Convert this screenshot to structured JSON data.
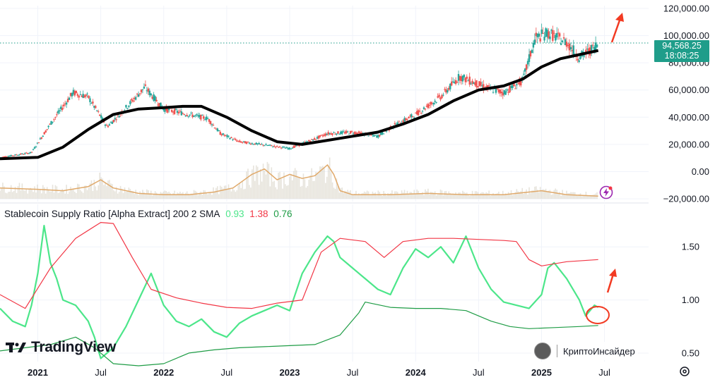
{
  "chart_data": [
    {
      "type": "line",
      "title": "",
      "xlabel": "",
      "ylabel": "",
      "xlim": [
        2020.7,
        2025.85
      ],
      "ylim": [
        -22000,
        122000
      ],
      "y_ticks": [
        "120,000.00",
        "100,000.00",
        "80,000.00",
        "60,000.00",
        "40,000.00",
        "20,000.00",
        "0.00",
        "−20,000.00"
      ],
      "y_tick_values": [
        120000,
        100000,
        80000,
        60000,
        40000,
        20000,
        0,
        -20000
      ],
      "current_price": "94,568.25",
      "countdown": "18:08:25",
      "current_price_value": 94568,
      "series": [
        {
          "color": "#000000",
          "kind": "moving-average",
          "x": [
            2020.7,
            2021.0,
            2021.2,
            2021.4,
            2021.6,
            2021.8,
            2022.0,
            2022.15,
            2022.3,
            2022.5,
            2022.7,
            2022.9,
            2023.1,
            2023.3,
            2023.5,
            2023.7,
            2023.9,
            2024.1,
            2024.3,
            2024.5,
            2024.7,
            2024.85,
            2025.0,
            2025.15,
            2025.3,
            2025.45
          ],
          "y": [
            9500,
            10500,
            18000,
            31000,
            42000,
            46000,
            47000,
            48000,
            48000,
            40000,
            30000,
            22000,
            20000,
            23000,
            26000,
            29000,
            35000,
            42000,
            52000,
            60000,
            63000,
            68000,
            77000,
            83000,
            86000,
            89000
          ]
        },
        {
          "color": "#e0a96a",
          "kind": "oscillator",
          "x": [
            2020.7,
            2021.0,
            2021.2,
            2021.4,
            2021.5,
            2021.6,
            2021.8,
            2022.0,
            2022.2,
            2022.4,
            2022.55,
            2022.7,
            2022.8,
            2022.9,
            2023.0,
            2023.1,
            2023.2,
            2023.3,
            2023.35,
            2023.4,
            2023.5,
            2023.8,
            2024.1,
            2024.4,
            2024.7,
            2025.0,
            2025.2,
            2025.45
          ],
          "y": [
            -12000,
            -13000,
            -14000,
            -11000,
            -6000,
            -12000,
            -16000,
            -17000,
            -17000,
            -15000,
            -12000,
            -2000,
            2000,
            -6000,
            -2000,
            -5000,
            -3000,
            5000,
            -2000,
            -14000,
            -17000,
            -17000,
            -16000,
            -17000,
            -17000,
            -14000,
            -17000,
            -18000
          ]
        }
      ]
    },
    {
      "type": "line",
      "title": "Stablecoin Supply Ratio [Alpha Extract] 200 2 SMA",
      "legend_values": [
        "0.93",
        "1.38",
        "0.76"
      ],
      "xlabel": "",
      "ylabel": "",
      "xlim": [
        2020.7,
        2025.85
      ],
      "ylim": [
        0.42,
        1.8
      ],
      "y_ticks": [
        "1.50",
        "1.00",
        "0.50"
      ],
      "y_tick_values": [
        1.5,
        1.0,
        0.5
      ],
      "x_ticks": [
        "2021",
        "Jul",
        "2022",
        "Jul",
        "2023",
        "Jul",
        "2024",
        "Jul",
        "2025",
        "Jul"
      ],
      "x_tick_values": [
        2021.0,
        2021.5,
        2022.0,
        2022.5,
        2023.0,
        2023.5,
        2024.0,
        2024.5,
        2025.0,
        2025.5
      ],
      "series": [
        {
          "color": "#4ce68a",
          "value": 0.93,
          "kind": "ratio",
          "x": [
            2020.7,
            2020.8,
            2020.9,
            2020.95,
            2021.0,
            2021.05,
            2021.1,
            2021.15,
            2021.2,
            2021.3,
            2021.4,
            2021.45,
            2021.5,
            2021.6,
            2021.7,
            2021.8,
            2021.9,
            2022.0,
            2022.1,
            2022.2,
            2022.3,
            2022.4,
            2022.5,
            2022.6,
            2022.7,
            2022.8,
            2022.9,
            2023.0,
            2023.1,
            2023.2,
            2023.3,
            2023.35,
            2023.4,
            2023.5,
            2023.6,
            2023.7,
            2023.8,
            2023.9,
            2024.0,
            2024.1,
            2024.2,
            2024.3,
            2024.4,
            2024.5,
            2024.6,
            2024.7,
            2024.8,
            2024.9,
            2025.0,
            2025.05,
            2025.1,
            2025.2,
            2025.3,
            2025.35,
            2025.42,
            2025.45
          ],
          "y": [
            0.92,
            0.8,
            0.75,
            0.95,
            1.25,
            1.7,
            1.35,
            1.2,
            1.0,
            0.95,
            0.8,
            0.65,
            0.45,
            0.55,
            0.75,
            1.0,
            1.25,
            0.95,
            0.8,
            0.75,
            0.82,
            0.7,
            0.65,
            0.78,
            0.85,
            0.9,
            0.95,
            0.9,
            1.25,
            1.45,
            1.6,
            1.55,
            1.4,
            1.3,
            1.2,
            1.1,
            1.05,
            1.3,
            1.48,
            1.4,
            1.5,
            1.35,
            1.6,
            1.3,
            1.1,
            0.98,
            0.95,
            0.92,
            1.05,
            1.3,
            1.35,
            1.2,
            1.0,
            0.85,
            0.95,
            0.93
          ]
        },
        {
          "color": "#f23645",
          "value": 1.38,
          "kind": "upper-band",
          "x": [
            2020.7,
            2020.9,
            2021.1,
            2021.3,
            2021.5,
            2021.6,
            2021.75,
            2021.9,
            2022.1,
            2022.3,
            2022.5,
            2022.7,
            2022.9,
            2023.1,
            2023.25,
            2023.4,
            2023.6,
            2023.75,
            2023.9,
            2024.1,
            2024.3,
            2024.5,
            2024.7,
            2024.8,
            2024.9,
            2025.0,
            2025.2,
            2025.45
          ],
          "y": [
            1.05,
            0.92,
            1.3,
            1.58,
            1.73,
            1.72,
            1.4,
            1.1,
            1.02,
            0.97,
            0.93,
            0.92,
            0.97,
            1.0,
            1.45,
            1.58,
            1.55,
            1.4,
            1.55,
            1.58,
            1.58,
            1.57,
            1.56,
            1.55,
            1.38,
            1.32,
            1.36,
            1.38
          ]
        },
        {
          "color": "#1e9c45",
          "value": 0.76,
          "kind": "lower-band",
          "x": [
            2020.7,
            2020.9,
            2021.1,
            2021.3,
            2021.45,
            2021.6,
            2021.8,
            2022.0,
            2022.2,
            2022.4,
            2022.6,
            2022.8,
            2023.0,
            2023.2,
            2023.4,
            2023.55,
            2023.6,
            2023.8,
            2024.0,
            2024.2,
            2024.4,
            2024.6,
            2024.75,
            2024.9,
            2025.1,
            2025.3,
            2025.45
          ],
          "y": [
            0.52,
            0.55,
            0.58,
            0.65,
            0.55,
            0.4,
            0.38,
            0.4,
            0.5,
            0.53,
            0.55,
            0.56,
            0.57,
            0.58,
            0.67,
            0.88,
            0.98,
            0.93,
            0.92,
            0.92,
            0.9,
            0.8,
            0.75,
            0.73,
            0.74,
            0.75,
            0.76
          ]
        }
      ]
    }
  ],
  "branding": {
    "tradingview": "TradingView",
    "channel": "КриптоИнсайдер"
  }
}
